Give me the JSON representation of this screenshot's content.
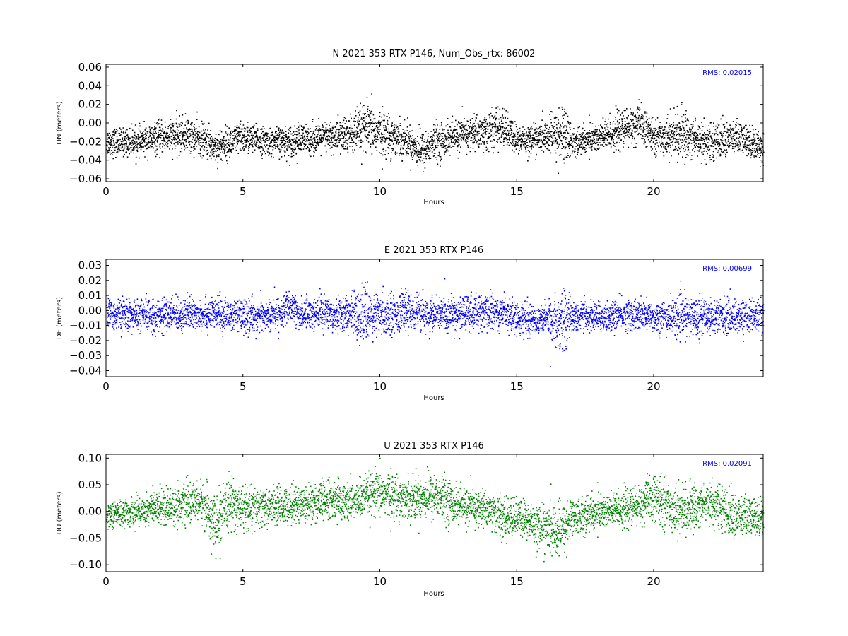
{
  "chart_data": [
    {
      "type": "scatter",
      "title": "N 2021 353 RTX  P146, Num_Obs_rtx: 86002",
      "xlabel": "Hours",
      "ylabel": "DN (meters)",
      "xlim": [
        0,
        24
      ],
      "ylim": [
        -0.063,
        0.063
      ],
      "xticks": [
        "0",
        "5",
        "10",
        "15",
        "20"
      ],
      "xtick_values": [
        0,
        5,
        10,
        15,
        20
      ],
      "yticks": [
        "−0.06",
        "−0.04",
        "−0.02",
        "0.00",
        "0.02",
        "0.04",
        "0.06"
      ],
      "ytick_values": [
        -0.06,
        -0.04,
        -0.02,
        0.0,
        0.02,
        0.04,
        0.06
      ],
      "annotation": "RMS:  0.02015",
      "color": "#000000",
      "annotation_color": "#0000ff",
      "series": [
        {
          "x": [
            0,
            1,
            2,
            3,
            4,
            5,
            6,
            7,
            8,
            9,
            9.5,
            10,
            11,
            11.5,
            12,
            13,
            14,
            14.5,
            15,
            16,
            16.8,
            17,
            18,
            19,
            19.5,
            20,
            21,
            22,
            23,
            24
          ],
          "y": [
            -0.02,
            -0.02,
            -0.015,
            -0.012,
            -0.025,
            -0.015,
            -0.02,
            -0.018,
            -0.015,
            -0.012,
            -0.005,
            -0.01,
            -0.018,
            -0.03,
            -0.02,
            -0.012,
            -0.008,
            -0.005,
            -0.018,
            -0.015,
            -0.01,
            -0.02,
            -0.015,
            -0.005,
            0.0,
            -0.015,
            -0.012,
            -0.02,
            -0.015,
            -0.025
          ],
          "spread": [
            0.018,
            0.016,
            0.02,
            0.022,
            0.02,
            0.02,
            0.016,
            0.02,
            0.018,
            0.026,
            0.03,
            0.028,
            0.02,
            0.024,
            0.022,
            0.02,
            0.024,
            0.024,
            0.018,
            0.018,
            0.04,
            0.016,
            0.02,
            0.024,
            0.024,
            0.018,
            0.03,
            0.022,
            0.022,
            0.018
          ]
        }
      ]
    },
    {
      "type": "scatter",
      "title": "E 2021 353 RTX  P146",
      "xlabel": "Hours",
      "ylabel": "DE (meters)",
      "xlim": [
        0,
        24
      ],
      "ylim": [
        -0.044,
        0.034
      ],
      "xticks": [
        "0",
        "5",
        "10",
        "15",
        "20"
      ],
      "xtick_values": [
        0,
        5,
        10,
        15,
        20
      ],
      "yticks": [
        "−0.04",
        "−0.03",
        "−0.02",
        "−0.01",
        "0.00",
        "0.01",
        "0.02",
        "0.03"
      ],
      "ytick_values": [
        -0.04,
        -0.03,
        -0.02,
        -0.01,
        0.0,
        0.01,
        0.02,
        0.03
      ],
      "annotation": "RMS:  0.00699",
      "color": "#0000ff",
      "annotation_color": "#0000ff",
      "series": [
        {
          "x": [
            0,
            1,
            2,
            3,
            4,
            5,
            6,
            6.8,
            7,
            8,
            9,
            9.5,
            10,
            11,
            12,
            13,
            14,
            14.5,
            15,
            16,
            16.8,
            17,
            18,
            19,
            20,
            21,
            22,
            23,
            24
          ],
          "y": [
            -0.002,
            -0.003,
            -0.003,
            -0.002,
            -0.002,
            -0.004,
            -0.003,
            0.002,
            -0.002,
            -0.001,
            -0.002,
            -0.003,
            -0.003,
            0.0,
            -0.003,
            -0.002,
            -0.001,
            0.0,
            -0.005,
            -0.006,
            -0.006,
            -0.003,
            -0.004,
            -0.002,
            -0.004,
            -0.004,
            -0.003,
            -0.004,
            -0.003
          ],
          "spread": [
            0.012,
            0.012,
            0.013,
            0.013,
            0.012,
            0.013,
            0.012,
            0.012,
            0.012,
            0.012,
            0.016,
            0.02,
            0.016,
            0.014,
            0.013,
            0.014,
            0.014,
            0.014,
            0.012,
            0.012,
            0.025,
            0.011,
            0.012,
            0.012,
            0.012,
            0.015,
            0.014,
            0.013,
            0.012
          ]
        }
      ]
    },
    {
      "type": "scatter",
      "title": "U 2021 353 RTX  P146",
      "xlabel": "Hours",
      "ylabel": "DU (meters)",
      "xlim": [
        0,
        24
      ],
      "ylim": [
        -0.113,
        0.107
      ],
      "xticks": [
        "0",
        "5",
        "10",
        "15",
        "20"
      ],
      "xtick_values": [
        0,
        5,
        10,
        15,
        20
      ],
      "yticks": [
        "−0.10",
        "−0.05",
        "0.00",
        "0.05",
        "0.10"
      ],
      "ytick_values": [
        -0.1,
        -0.05,
        0.0,
        0.05,
        0.1
      ],
      "annotation": "RMS:  0.02091",
      "color": "#008000",
      "annotation_color": "#0000ff",
      "series": [
        {
          "x": [
            0,
            1,
            2,
            3,
            3.5,
            4,
            4.5,
            5,
            6,
            7,
            8,
            9,
            10,
            11,
            12,
            13,
            14,
            14.5,
            15,
            16,
            16.5,
            17,
            18,
            19,
            20,
            21,
            22,
            23,
            24
          ],
          "y": [
            -0.005,
            0.0,
            0.01,
            0.015,
            0.02,
            -0.03,
            0.02,
            0.005,
            0.01,
            0.015,
            0.02,
            0.02,
            0.035,
            0.025,
            0.03,
            0.01,
            0.005,
            -0.015,
            -0.01,
            -0.03,
            -0.04,
            -0.01,
            0.0,
            0.005,
            0.025,
            0.0,
            0.02,
            -0.01,
            -0.01
          ],
          "spread": [
            0.03,
            0.03,
            0.04,
            0.04,
            0.045,
            0.06,
            0.05,
            0.05,
            0.04,
            0.04,
            0.045,
            0.04,
            0.05,
            0.045,
            0.05,
            0.04,
            0.04,
            0.045,
            0.04,
            0.05,
            0.06,
            0.04,
            0.04,
            0.04,
            0.05,
            0.05,
            0.045,
            0.05,
            0.04
          ]
        }
      ]
    }
  ]
}
